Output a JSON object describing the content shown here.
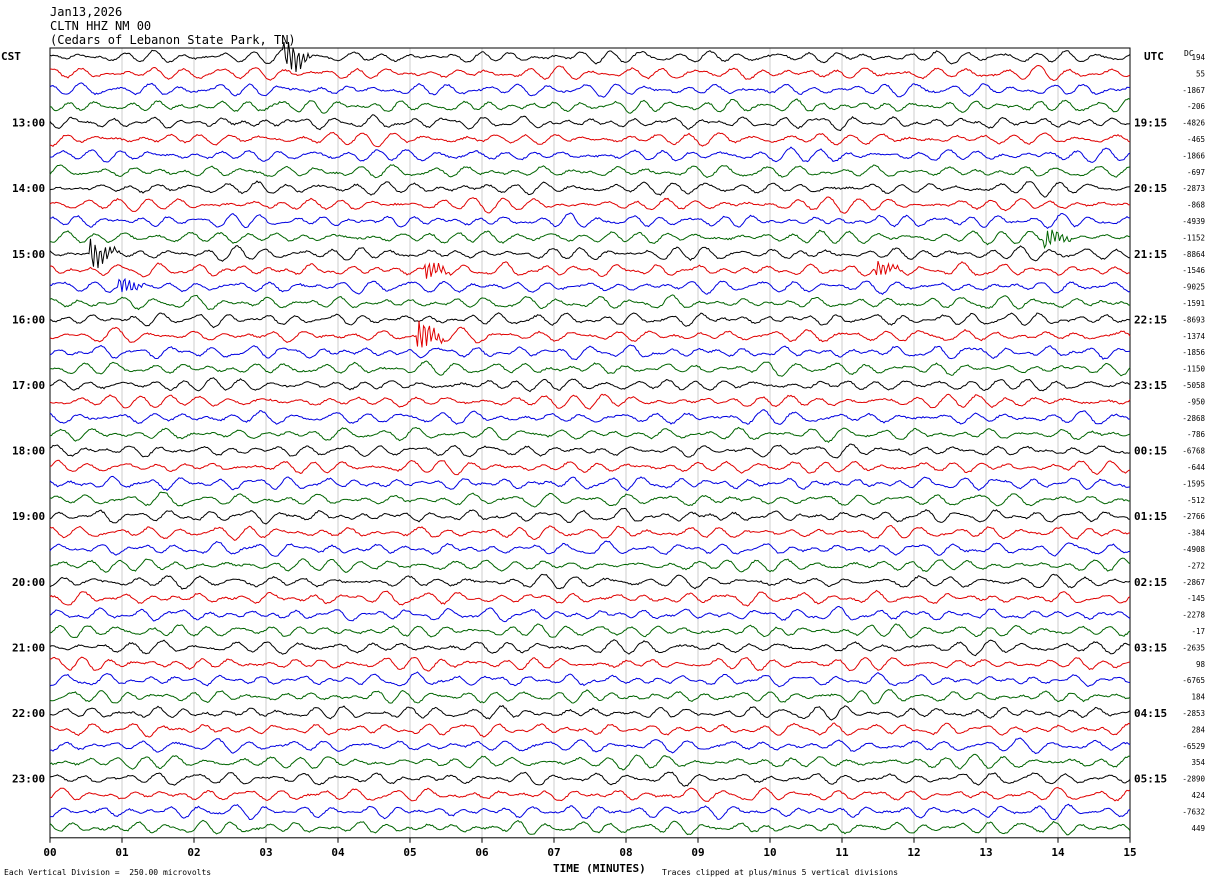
{
  "header": {
    "date": "Jan13,2026",
    "station": "CLTN HHZ NM 00",
    "location": "(Cedars of Lebanon State Park, TN)"
  },
  "left_timezone": "CST",
  "right_timezone": "UTC",
  "right_column_label": "DC",
  "x_axis_title": "TIME (MINUTES)",
  "footer_left": "Each Vertical Division =  250.00 microvolts",
  "footer_right": "Traces clipped at plus/minus 5 vertical divisions",
  "colors": {
    "trace_cycle": [
      "#000000",
      "#e00000",
      "#0000e0",
      "#006400"
    ],
    "grid": "#c0c0c0"
  },
  "chart_data": {
    "type": "line",
    "title": "",
    "xlabel": "TIME (MINUTES)",
    "x_ticks": [
      "00",
      "01",
      "02",
      "03",
      "04",
      "05",
      "06",
      "07",
      "08",
      "09",
      "10",
      "11",
      "12",
      "13",
      "14",
      "15"
    ],
    "xlim": [
      0,
      15
    ],
    "left_hour_labels": [
      "13:00",
      "14:00",
      "15:00",
      "16:00",
      "17:00",
      "18:00",
      "19:00",
      "20:00",
      "21:00",
      "22:00",
      "23:00"
    ],
    "right_hour_labels": [
      "19:15",
      "20:15",
      "21:15",
      "22:15",
      "23:15",
      "00:15",
      "01:15",
      "02:15",
      "03:15",
      "04:15",
      "05:15"
    ],
    "traces_per_hour": 4,
    "trace_count": 48,
    "dc_offsets": [
      "194",
      "55",
      "-1867",
      "-206",
      "-4826",
      "-465",
      "-1866",
      "-697",
      "-2873",
      "-868",
      "-4939",
      "-1152",
      "-8864",
      "-1546",
      "-9025",
      "-1591",
      "-8693",
      "-1374",
      "-1856",
      "-1150",
      "-5058",
      "-950",
      "-2868",
      "-786",
      "-6768",
      "-644",
      "-1595",
      "-512",
      "-2766",
      "-384",
      "-4908",
      "-272",
      "-2867",
      "-145",
      "-2278",
      "-17",
      "-2635",
      "98",
      "-6765",
      "184",
      "-2853",
      "284",
      "-6529",
      "354",
      "-2890",
      "424",
      "-7632",
      "449"
    ],
    "events": [
      {
        "trace": 0,
        "minute": 3.25,
        "amp": 3.2
      },
      {
        "trace": 12,
        "minute": 0.55,
        "amp": 2.6
      },
      {
        "trace": 13,
        "minute": 5.2,
        "amp": 1.6
      },
      {
        "trace": 13,
        "minute": 11.45,
        "amp": 1.4
      },
      {
        "trace": 17,
        "minute": 5.1,
        "amp": 2.8
      },
      {
        "trace": 11,
        "minute": 13.8,
        "amp": 1.8
      },
      {
        "trace": 14,
        "minute": 0.95,
        "amp": 1.5
      }
    ]
  }
}
